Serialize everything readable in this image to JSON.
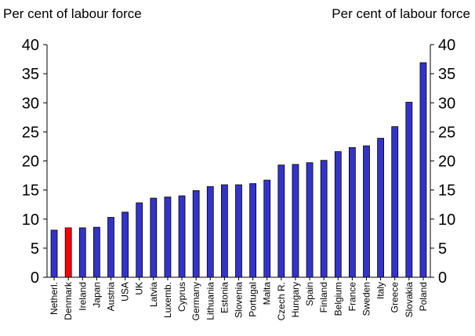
{
  "unit_left": "Per cent of labour force",
  "unit_right": "Per cent of labour force",
  "chart_data": {
    "type": "bar",
    "title": "",
    "xlabel": "",
    "ylabel": "Per cent of labour force",
    "y2label": "Per cent of labour force",
    "ylim": [
      0,
      40
    ],
    "yticks": [
      0,
      5,
      10,
      15,
      20,
      25,
      30,
      35,
      40
    ],
    "grid": false,
    "legend": "none",
    "bar_color": "#3333cc",
    "highlight_color": "#ff0000",
    "highlight_category": "Denmark",
    "categories": [
      "Netherl.",
      "Denmark",
      "Ireland",
      "Japan",
      "Austria",
      "USA",
      "UK",
      "Latvia",
      "Luxemb.",
      "Cyprus",
      "Germany",
      "Lithuania",
      "Estonia",
      "Slovenia",
      "Portugal",
      "Malta",
      "Czech R.",
      "Hungary",
      "Spain",
      "Finland",
      "Belgium",
      "France",
      "Sweden",
      "Italy",
      "Greece",
      "Slovakia",
      "Poland"
    ],
    "values": [
      8.1,
      8.5,
      8.5,
      8.6,
      10.3,
      11.2,
      12.8,
      13.6,
      13.8,
      14.0,
      14.9,
      15.6,
      15.9,
      15.9,
      16.1,
      16.7,
      19.3,
      19.4,
      19.7,
      20.1,
      21.6,
      22.3,
      22.6,
      23.9,
      25.9,
      30.1,
      36.9
    ]
  }
}
